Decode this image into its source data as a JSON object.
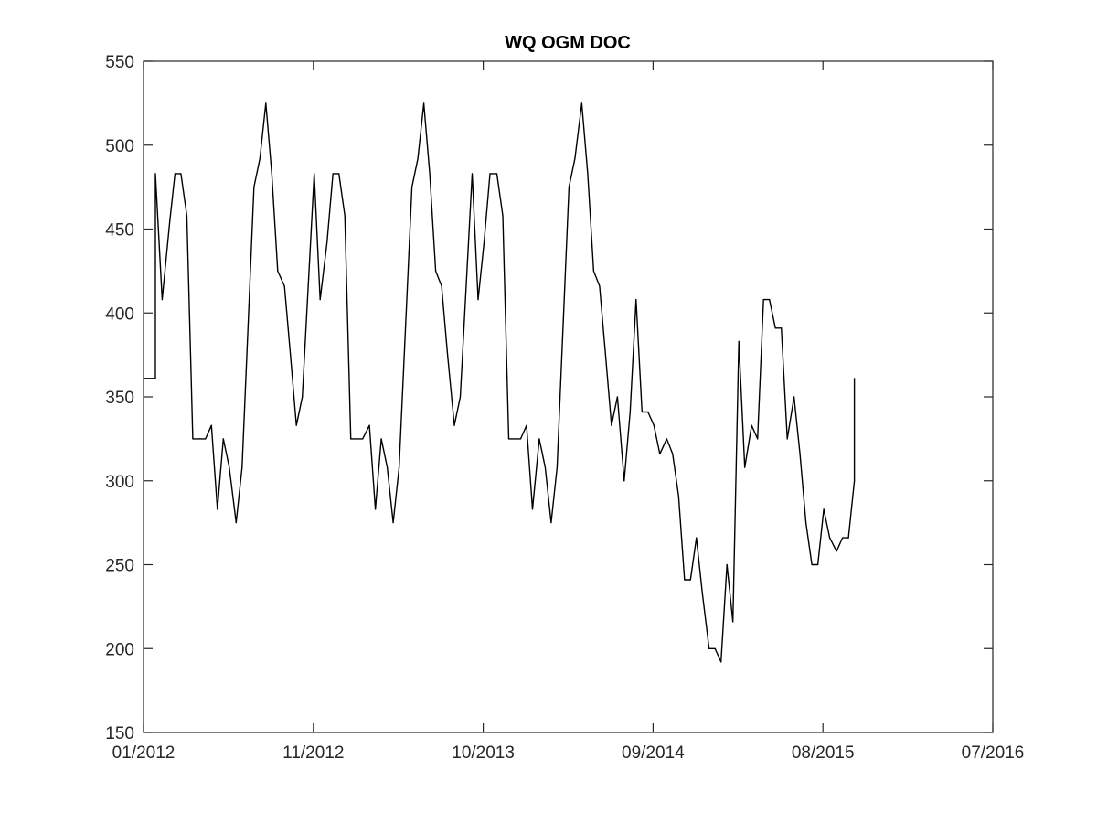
{
  "chart_data": {
    "type": "line",
    "title": "WQ OGM DOC",
    "xlabel": "",
    "ylabel": "",
    "ylim": [
      150,
      550
    ],
    "yticks": [
      150,
      200,
      250,
      300,
      350,
      400,
      450,
      500,
      550
    ],
    "x_ticks": [
      {
        "label": "01/2012",
        "t": 0.0
      },
      {
        "label": "11/2012",
        "t": 0.2
      },
      {
        "label": "10/2013",
        "t": 0.4
      },
      {
        "label": "09/2014",
        "t": 0.6
      },
      {
        "label": "08/2015",
        "t": 0.8
      },
      {
        "label": "07/2016",
        "t": 1.0
      }
    ],
    "grid": false,
    "legend": "none",
    "series": [
      {
        "name": "WQ OGM DOC",
        "color": "#000000",
        "points": [
          [
            0.0,
            361
          ],
          [
            0.014,
            361
          ],
          [
            0.014,
            483
          ],
          [
            0.022,
            408
          ],
          [
            0.031,
            455
          ],
          [
            0.037,
            483
          ],
          [
            0.044,
            483
          ],
          [
            0.051,
            458
          ],
          [
            0.058,
            325
          ],
          [
            0.066,
            325
          ],
          [
            0.073,
            325
          ],
          [
            0.08,
            333
          ],
          [
            0.087,
            283
          ],
          [
            0.094,
            325
          ],
          [
            0.101,
            308
          ],
          [
            0.109,
            275
          ],
          [
            0.116,
            308
          ],
          [
            0.13,
            475
          ],
          [
            0.137,
            492
          ],
          [
            0.144,
            525
          ],
          [
            0.151,
            483
          ],
          [
            0.158,
            425
          ],
          [
            0.166,
            416
          ],
          [
            0.173,
            375
          ],
          [
            0.18,
            333
          ],
          [
            0.187,
            350
          ],
          [
            0.201,
            483
          ],
          [
            0.208,
            408
          ],
          [
            0.216,
            442
          ],
          [
            0.223,
            483
          ],
          [
            0.23,
            483
          ],
          [
            0.237,
            458
          ],
          [
            0.244,
            325
          ],
          [
            0.251,
            325
          ],
          [
            0.258,
            325
          ],
          [
            0.266,
            333
          ],
          [
            0.273,
            283
          ],
          [
            0.28,
            325
          ],
          [
            0.287,
            308
          ],
          [
            0.294,
            275
          ],
          [
            0.301,
            308
          ],
          [
            0.316,
            475
          ],
          [
            0.323,
            492
          ],
          [
            0.33,
            525
          ],
          [
            0.337,
            483
          ],
          [
            0.344,
            425
          ],
          [
            0.351,
            416
          ],
          [
            0.358,
            375
          ],
          [
            0.366,
            333
          ],
          [
            0.373,
            350
          ],
          [
            0.387,
            483
          ],
          [
            0.394,
            408
          ],
          [
            0.401,
            442
          ],
          [
            0.408,
            483
          ],
          [
            0.416,
            483
          ],
          [
            0.423,
            458
          ],
          [
            0.43,
            325
          ],
          [
            0.437,
            325
          ],
          [
            0.444,
            325
          ],
          [
            0.451,
            333
          ],
          [
            0.458,
            283
          ],
          [
            0.466,
            325
          ],
          [
            0.473,
            308
          ],
          [
            0.48,
            275
          ],
          [
            0.487,
            308
          ],
          [
            0.501,
            475
          ],
          [
            0.508,
            492
          ],
          [
            0.516,
            525
          ],
          [
            0.523,
            483
          ],
          [
            0.53,
            425
          ],
          [
            0.537,
            416
          ],
          [
            0.544,
            375
          ],
          [
            0.551,
            333
          ],
          [
            0.558,
            350
          ],
          [
            0.566,
            300
          ],
          [
            0.573,
            341
          ],
          [
            0.58,
            408
          ],
          [
            0.587,
            341
          ],
          [
            0.594,
            341
          ],
          [
            0.601,
            333
          ],
          [
            0.608,
            316
          ],
          [
            0.616,
            325
          ],
          [
            0.623,
            316
          ],
          [
            0.63,
            291
          ],
          [
            0.637,
            241
          ],
          [
            0.644,
            241
          ],
          [
            0.651,
            266
          ],
          [
            0.658,
            233
          ],
          [
            0.666,
            200
          ],
          [
            0.673,
            200
          ],
          [
            0.68,
            192
          ],
          [
            0.687,
            250
          ],
          [
            0.694,
            216
          ],
          [
            0.701,
            383
          ],
          [
            0.708,
            308
          ],
          [
            0.716,
            333
          ],
          [
            0.723,
            325
          ],
          [
            0.73,
            408
          ],
          [
            0.737,
            408
          ],
          [
            0.744,
            391
          ],
          [
            0.751,
            391
          ],
          [
            0.758,
            325
          ],
          [
            0.766,
            350
          ],
          [
            0.773,
            316
          ],
          [
            0.78,
            275
          ],
          [
            0.787,
            250
          ],
          [
            0.794,
            250
          ],
          [
            0.801,
            283
          ],
          [
            0.808,
            266
          ],
          [
            0.816,
            258
          ],
          [
            0.823,
            266
          ],
          [
            0.83,
            266
          ],
          [
            0.837,
            300
          ],
          [
            0.837,
            361
          ]
        ]
      }
    ]
  }
}
